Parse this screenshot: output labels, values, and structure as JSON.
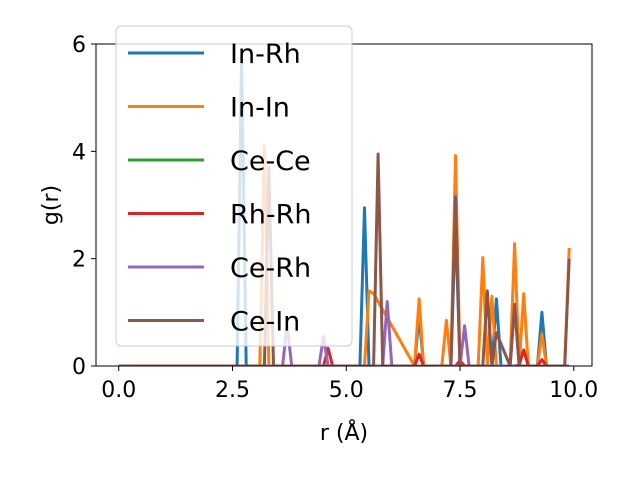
{
  "chart_data": {
    "type": "line",
    "xlabel": "r (Å)",
    "ylabel": "g(r)",
    "xlim": [
      -0.5,
      10.4
    ],
    "ylim": [
      0,
      6.0
    ],
    "xticks": [
      0.0,
      2.5,
      5.0,
      7.5,
      10.0
    ],
    "xtick_labels": [
      "0.0",
      "2.5",
      "5.0",
      "7.5",
      "10.0"
    ],
    "yticks": [
      0,
      2,
      4,
      6
    ],
    "ytick_labels": [
      "0",
      "2",
      "4",
      "6"
    ],
    "grid": false,
    "legend_position": "top-left",
    "series": [
      {
        "name": "In-Rh",
        "color": "#1f77b4",
        "x": [
          0,
          2.6,
          2.7,
          2.8,
          5.3,
          5.4,
          5.5,
          6.5,
          6.6,
          6.7,
          7.3,
          7.4,
          7.5,
          8.2,
          8.3,
          8.4,
          8.6,
          8.7,
          8.8,
          9.2,
          9.3,
          9.4,
          9.8,
          9.9
        ],
        "y": [
          0,
          0,
          5.8,
          0,
          0,
          2.95,
          0,
          0,
          0.95,
          0,
          0,
          2.7,
          0,
          0,
          1.25,
          0,
          0,
          1.15,
          0,
          0,
          1.0,
          0,
          0,
          0
        ]
      },
      {
        "name": "In-In",
        "color": "#ff7f0e",
        "x": [
          0,
          3.1,
          3.2,
          3.3,
          5.4,
          5.5,
          5.6,
          6.5,
          6.6,
          6.7,
          7.1,
          7.2,
          7.3,
          7.4,
          7.5,
          7.9,
          8.0,
          8.1,
          8.2,
          8.3,
          8.6,
          8.7,
          8.8,
          8.9,
          9.0,
          9.2,
          9.3,
          9.4,
          9.8,
          9.9
        ],
        "y": [
          0,
          0,
          4.1,
          0,
          0,
          1.4,
          1.35,
          0,
          1.25,
          0,
          0,
          0.85,
          0,
          3.92,
          0,
          0,
          2.02,
          0,
          1.3,
          0,
          0,
          2.28,
          0,
          1.35,
          0,
          0,
          0.6,
          0,
          0,
          2.2
        ]
      },
      {
        "name": "Ce-Ce",
        "color": "#2ca02c",
        "x": [
          0,
          9.9
        ],
        "y": [
          0,
          0
        ]
      },
      {
        "name": "Rh-Rh",
        "color": "#d62728",
        "x": [
          0,
          4.5,
          4.6,
          4.7,
          6.5,
          6.6,
          6.7,
          7.4,
          7.5,
          7.6,
          8.7,
          8.8,
          8.9,
          9.0,
          9.2,
          9.3,
          9.4,
          9.9
        ],
        "y": [
          0,
          0,
          0.33,
          0,
          0,
          0.22,
          0,
          0,
          0.1,
          0,
          0,
          0.02,
          0.3,
          0,
          0,
          0.12,
          0,
          0
        ]
      },
      {
        "name": "Ce-Rh",
        "color": "#9467bd",
        "x": [
          0,
          3.6,
          3.7,
          3.8,
          4.4,
          4.5,
          4.6,
          5.8,
          5.9,
          6.0,
          7.5,
          7.6,
          7.7,
          9.9
        ],
        "y": [
          0,
          0,
          0.78,
          0,
          0,
          0.55,
          0,
          0,
          1.2,
          0,
          0,
          0.75,
          0,
          0
        ]
      },
      {
        "name": "Ce-In",
        "color": "#8c564b",
        "x": [
          0,
          3.2,
          3.3,
          3.4,
          5.6,
          5.7,
          5.8,
          7.3,
          7.4,
          7.5,
          8.0,
          8.1,
          8.2,
          8.3,
          8.6,
          8.7,
          8.8,
          9.8,
          9.9
        ],
        "y": [
          0,
          0,
          3.7,
          0,
          0,
          3.95,
          0,
          0,
          3.15,
          0,
          0,
          1.4,
          0,
          0.62,
          0,
          1.15,
          0,
          0,
          2.0
        ]
      }
    ]
  }
}
